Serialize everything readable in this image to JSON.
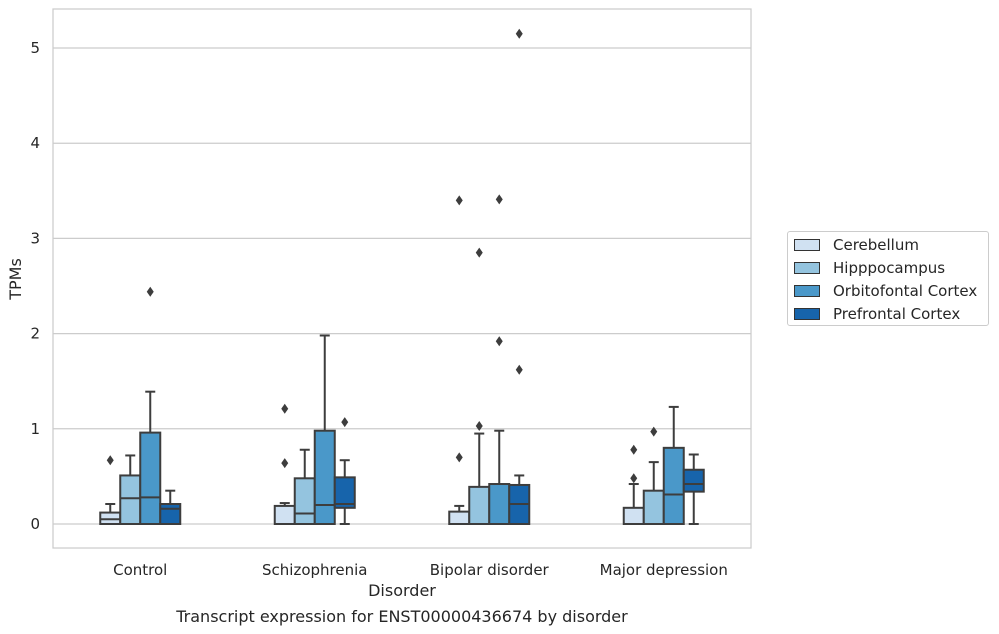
{
  "chart_data": {
    "type": "box",
    "title": "Transcript expression for ENST00000436674 by disorder",
    "xlabel": "Disorder",
    "ylabel": "TPMs",
    "ylim": [
      -0.25,
      5.4
    ],
    "yticks": [
      0,
      1,
      2,
      3,
      4,
      5
    ],
    "grid": true,
    "legend_position": "right",
    "categories": [
      "Control",
      "Schizophrenia",
      "Bipolar disorder",
      "Major depression"
    ],
    "series": [
      {
        "name": "Cerebellum",
        "color": "#d0e1f2",
        "boxes": [
          {
            "whisker_low": 0.0,
            "q1": 0.0,
            "median": 0.05,
            "q3": 0.12,
            "whisker_high": 0.21,
            "outliers": [
              0.67
            ]
          },
          {
            "whisker_low": 0.0,
            "q1": 0.0,
            "median": 0.0,
            "q3": 0.19,
            "whisker_high": 0.22,
            "outliers": [
              0.64,
              1.21
            ]
          },
          {
            "whisker_low": 0.0,
            "q1": 0.0,
            "median": 0.0,
            "q3": 0.13,
            "whisker_high": 0.19,
            "outliers": [
              0.7,
              3.4
            ]
          },
          {
            "whisker_low": 0.0,
            "q1": 0.0,
            "median": 0.0,
            "q3": 0.17,
            "whisker_high": 0.42,
            "outliers": [
              0.48,
              0.78
            ]
          }
        ]
      },
      {
        "name": "Hipppocampus",
        "color": "#94c4df",
        "boxes": [
          {
            "whisker_low": 0.0,
            "q1": 0.0,
            "median": 0.27,
            "q3": 0.51,
            "whisker_high": 0.72,
            "outliers": []
          },
          {
            "whisker_low": 0.0,
            "q1": 0.0,
            "median": 0.11,
            "q3": 0.48,
            "whisker_high": 0.78,
            "outliers": []
          },
          {
            "whisker_low": 0.0,
            "q1": 0.0,
            "median": 0.0,
            "q3": 0.39,
            "whisker_high": 0.95,
            "outliers": [
              1.03,
              2.85
            ]
          },
          {
            "whisker_low": 0.0,
            "q1": 0.0,
            "median": 0.0,
            "q3": 0.35,
            "whisker_high": 0.65,
            "outliers": [
              0.97
            ]
          }
        ]
      },
      {
        "name": "Orbitofontal Cortex",
        "color": "#4a98c9",
        "boxes": [
          {
            "whisker_low": 0.0,
            "q1": 0.0,
            "median": 0.28,
            "q3": 0.96,
            "whisker_high": 1.39,
            "outliers": [
              2.44
            ]
          },
          {
            "whisker_low": 0.0,
            "q1": 0.0,
            "median": 0.2,
            "q3": 0.98,
            "whisker_high": 1.98,
            "outliers": []
          },
          {
            "whisker_low": 0.0,
            "q1": 0.0,
            "median": 0.0,
            "q3": 0.42,
            "whisker_high": 0.98,
            "outliers": [
              1.92,
              3.41
            ]
          },
          {
            "whisker_low": 0.0,
            "q1": 0.0,
            "median": 0.31,
            "q3": 0.8,
            "whisker_high": 1.23,
            "outliers": []
          }
        ]
      },
      {
        "name": "Prefrontal Cortex",
        "color": "#1764ab",
        "boxes": [
          {
            "whisker_low": 0.0,
            "q1": 0.0,
            "median": 0.16,
            "q3": 0.21,
            "whisker_high": 0.35,
            "outliers": []
          },
          {
            "whisker_low": 0.0,
            "q1": 0.17,
            "median": 0.21,
            "q3": 0.49,
            "whisker_high": 0.67,
            "outliers": [
              1.07
            ]
          },
          {
            "whisker_low": 0.0,
            "q1": 0.0,
            "median": 0.21,
            "q3": 0.41,
            "whisker_high": 0.51,
            "outliers": [
              1.62,
              5.15
            ]
          },
          {
            "whisker_low": 0.0,
            "q1": 0.34,
            "median": 0.42,
            "q3": 0.57,
            "whisker_high": 0.73,
            "outliers": []
          }
        ]
      }
    ]
  }
}
